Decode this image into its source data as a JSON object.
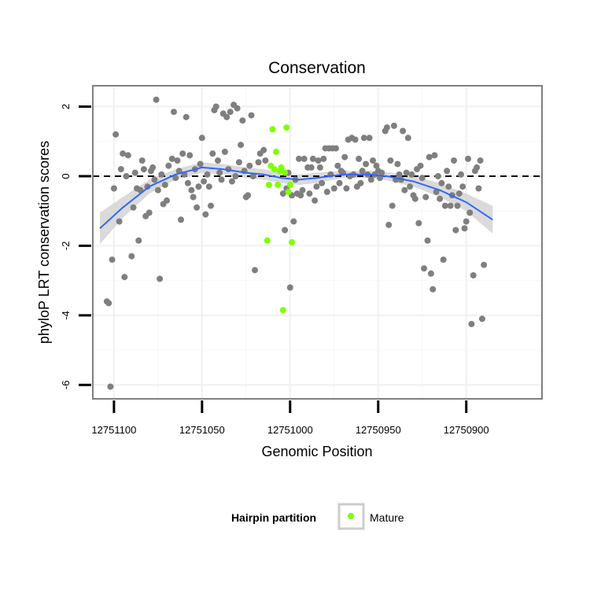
{
  "chart_data": {
    "type": "scatter",
    "title": "Conservation",
    "xlabel": "Genomic Position",
    "ylabel": "phyloP LRT conservation scores",
    "x_reversed": true,
    "xlim": [
      12751112,
      12750857
    ],
    "ylim": [
      -6.4,
      2.6
    ],
    "x_ticks": [
      12751100,
      12751050,
      12751000,
      12750950,
      12750900
    ],
    "y_ticks": [
      -6,
      -4,
      -2,
      0,
      2
    ],
    "reference_line": 0,
    "grid": true,
    "legend": {
      "title": "Hairpin partition",
      "position": "bottom",
      "entries": [
        {
          "label": "Mature",
          "color": "#7fff00"
        }
      ]
    },
    "colors": {
      "background": "#7f7f7f",
      "mature": "#7fff00",
      "smooth": "#3366ff",
      "band": "#d4d4d4"
    },
    "series": [
      {
        "name": "",
        "color": "#7f7f7f",
        "points": [
          [
            12751104,
            -3.6
          ],
          [
            12751103,
            -3.65
          ],
          [
            12751102,
            -6.05
          ],
          [
            12751101,
            -2.4
          ],
          [
            12751100,
            -0.35
          ],
          [
            12751099,
            1.2
          ],
          [
            12751097,
            -1.3
          ],
          [
            12751096,
            0.2
          ],
          [
            12751095,
            0.65
          ],
          [
            12751094,
            -2.9
          ],
          [
            12751093,
            0.0
          ],
          [
            12751092,
            0.6
          ],
          [
            12751090,
            -2.3
          ],
          [
            12751089,
            -0.9
          ],
          [
            12751088,
            0.1
          ],
          [
            12751087,
            -0.35
          ],
          [
            12751086,
            -1.85
          ],
          [
            12751085,
            -0.4
          ],
          [
            12751084,
            0.45
          ],
          [
            12751083,
            0.2
          ],
          [
            12751082,
            -1.15
          ],
          [
            12751081,
            -0.3
          ],
          [
            12751080,
            -1.05
          ],
          [
            12751079,
            0.15
          ],
          [
            12751078,
            0.25
          ],
          [
            12751077,
            -0.1
          ],
          [
            12751076,
            2.2
          ],
          [
            12751075,
            -0.4
          ],
          [
            12751074,
            -2.95
          ],
          [
            12751073,
            0.05
          ],
          [
            12751072,
            -0.8
          ],
          [
            12751071,
            -0.25
          ],
          [
            12751070,
            -0.7
          ],
          [
            12751069,
            0.3
          ],
          [
            12751067,
            0.5
          ],
          [
            12751066,
            1.85
          ],
          [
            12751065,
            -0.05
          ],
          [
            12751064,
            0.45
          ],
          [
            12751063,
            0.15
          ],
          [
            12751062,
            -1.25
          ],
          [
            12751061,
            0.65
          ],
          [
            12751060,
            0.05
          ],
          [
            12751059,
            1.7
          ],
          [
            12751058,
            -0.2
          ],
          [
            12751057,
            0.6
          ],
          [
            12751056,
            -0.4
          ],
          [
            12751055,
            -0.6
          ],
          [
            12751054,
            0.2
          ],
          [
            12751053,
            -0.9
          ],
          [
            12751052,
            -0.3
          ],
          [
            12751051,
            0.35
          ],
          [
            12751050,
            1.1
          ],
          [
            12751049,
            -0.15
          ],
          [
            12751048,
            -1.1
          ],
          [
            12751047,
            0.05
          ],
          [
            12751046,
            -0.3
          ],
          [
            12751045,
            -0.85
          ],
          [
            12751044,
            0.65
          ],
          [
            12751043,
            1.9
          ],
          [
            12751042,
            2.0
          ],
          [
            12751041,
            0.45
          ],
          [
            12751040,
            0.1
          ],
          [
            12751039,
            -0.1
          ],
          [
            12751038,
            1.8
          ],
          [
            12751037,
            0.7
          ],
          [
            12751036,
            1.7
          ],
          [
            12751035,
            0.2
          ],
          [
            12751034,
            1.85
          ],
          [
            12751033,
            -0.15
          ],
          [
            12751032,
            2.05
          ],
          [
            12751031,
            0.0
          ],
          [
            12751030,
            1.95
          ],
          [
            12751029,
            0.4
          ],
          [
            12751028,
            0.9
          ],
          [
            12751027,
            1.6
          ],
          [
            12751026,
            0.15
          ],
          [
            12751025,
            -0.6
          ],
          [
            12751024,
            -0.55
          ],
          [
            12751023,
            0.3
          ],
          [
            12751022,
            1.75
          ],
          [
            12751021,
            0.0
          ],
          [
            12751020,
            -2.7
          ],
          [
            12751018,
            0.4
          ],
          [
            12751017,
            0.65
          ],
          [
            12751015,
            0.75
          ],
          [
            12751014,
            0.45
          ],
          [
            12751004,
            -0.5
          ],
          [
            12751003,
            -1.55
          ],
          [
            12751002,
            -0.35
          ],
          [
            12751001,
            0.1
          ],
          [
            12751000,
            -3.2
          ],
          [
            12750999,
            -0.55
          ],
          [
            12750998,
            -1.3
          ],
          [
            12750997,
            -0.1
          ],
          [
            12750996,
            -0.5
          ],
          [
            12750995,
            0.5
          ],
          [
            12750994,
            -0.55
          ],
          [
            12750993,
            -0.4
          ],
          [
            12750992,
            0.5
          ],
          [
            12750990,
            0.25
          ],
          [
            12750989,
            -0.5
          ],
          [
            12750988,
            0.25
          ],
          [
            12750987,
            0.5
          ],
          [
            12750986,
            -0.7
          ],
          [
            12750985,
            -0.3
          ],
          [
            12750984,
            0.45
          ],
          [
            12750983,
            0.25
          ],
          [
            12750982,
            -0.2
          ],
          [
            12750981,
            0.5
          ],
          [
            12750980,
            0.8
          ],
          [
            12750979,
            -0.45
          ],
          [
            12750978,
            0.8
          ],
          [
            12750977,
            0.05
          ],
          [
            12750976,
            0.8
          ],
          [
            12750975,
            -0.35
          ],
          [
            12750974,
            0.8
          ],
          [
            12750973,
            0.3
          ],
          [
            12750972,
            -0.2
          ],
          [
            12750971,
            0.15
          ],
          [
            12750970,
            0.1
          ],
          [
            12750969,
            0.55
          ],
          [
            12750968,
            -0.35
          ],
          [
            12750967,
            1.05
          ],
          [
            12750966,
            0.0
          ],
          [
            12750965,
            1.1
          ],
          [
            12750964,
            0.05
          ],
          [
            12750963,
            1.05
          ],
          [
            12750962,
            -0.3
          ],
          [
            12750961,
            0.5
          ],
          [
            12750960,
            -0.2
          ],
          [
            12750959,
            0.15
          ],
          [
            12750958,
            1.1
          ],
          [
            12750957,
            0.35
          ],
          [
            12750956,
            0.05
          ],
          [
            12750955,
            1.1
          ],
          [
            12750954,
            -0.1
          ],
          [
            12750953,
            0.45
          ],
          [
            12750952,
            0.05
          ],
          [
            12750951,
            0.3
          ],
          [
            12750950,
            0.15
          ],
          [
            12750949,
            -0.05
          ],
          [
            12750948,
            0.1
          ],
          [
            12750946,
            1.3
          ],
          [
            12750945,
            1.4
          ],
          [
            12750944,
            -1.4
          ],
          [
            12750943,
            0.45
          ],
          [
            12750942,
            -0.85
          ],
          [
            12750941,
            1.45
          ],
          [
            12750940,
            -0.1
          ],
          [
            12750939,
            0.35
          ],
          [
            12750938,
            0.05
          ],
          [
            12750937,
            -0.1
          ],
          [
            12750936,
            1.3
          ],
          [
            12750935,
            -0.4
          ],
          [
            12750934,
            0.1
          ],
          [
            12750933,
            1.1
          ],
          [
            12750932,
            -0.3
          ],
          [
            12750931,
            0.05
          ],
          [
            12750930,
            -0.55
          ],
          [
            12750929,
            -0.65
          ],
          [
            12750928,
            0.2
          ],
          [
            12750927,
            -1.35
          ],
          [
            12750926,
            0.3
          ],
          [
            12750925,
            -0.05
          ],
          [
            12750924,
            -2.65
          ],
          [
            12750923,
            -0.6
          ],
          [
            12750922,
            -1.85
          ],
          [
            12750921,
            0.55
          ],
          [
            12750920,
            -2.8
          ],
          [
            12750919,
            -3.25
          ],
          [
            12750918,
            0.6
          ],
          [
            12750917,
            -0.45
          ],
          [
            12750916,
            0.0
          ],
          [
            12750915,
            -0.65
          ],
          [
            12750914,
            -0.2
          ],
          [
            12750913,
            -2.4
          ],
          [
            12750912,
            -0.85
          ],
          [
            12750911,
            0.15
          ],
          [
            12750910,
            -0.3
          ],
          [
            12750909,
            -0.85
          ],
          [
            12750908,
            -0.55
          ],
          [
            12750907,
            0.45
          ],
          [
            12750906,
            -1.55
          ],
          [
            12750905,
            -0.85
          ],
          [
            12750904,
            -0.5
          ],
          [
            12750903,
            0.05
          ],
          [
            12750902,
            -0.3
          ],
          [
            12750901,
            -1.5
          ],
          [
            12750900,
            -1.3
          ],
          [
            12750899,
            0.5
          ],
          [
            12750898,
            -1.05
          ],
          [
            12750897,
            -4.25
          ],
          [
            12750896,
            -2.85
          ],
          [
            12750895,
            0.15
          ],
          [
            12750894,
            0.25
          ],
          [
            12750893,
            -0.35
          ],
          [
            12750892,
            0.45
          ],
          [
            12750891,
            -4.1
          ],
          [
            12750890,
            -2.55
          ]
        ]
      },
      {
        "name": "Mature",
        "color": "#7fff00",
        "points": [
          [
            12751013,
            -1.85
          ],
          [
            12751012,
            -0.25
          ],
          [
            12751011,
            0.3
          ],
          [
            12751010,
            1.35
          ],
          [
            12751009,
            0.2
          ],
          [
            12751008,
            0.7
          ],
          [
            12751007,
            -0.25
          ],
          [
            12751006,
            0.15
          ],
          [
            12751005,
            0.25
          ],
          [
            12751004,
            -3.85
          ],
          [
            12751003,
            0.1
          ],
          [
            12751002,
            1.4
          ],
          [
            12751001,
            -0.45
          ],
          [
            12751000,
            -0.25
          ],
          [
            12750999,
            -1.9
          ]
        ]
      }
    ],
    "smooth": {
      "color": "#3366ff",
      "x": [
        12751108,
        12751095,
        12751080,
        12751065,
        12751050,
        12751038,
        12751025,
        12751015,
        12751005,
        12750995,
        12750985,
        12750970,
        12750955,
        12750945,
        12750930,
        12750915,
        12750900,
        12750885
      ],
      "y": [
        -1.5,
        -0.9,
        -0.3,
        0.05,
        0.25,
        0.2,
        0.1,
        0.05,
        -0.05,
        -0.1,
        -0.05,
        0.05,
        0.05,
        0.0,
        -0.15,
        -0.4,
        -0.75,
        -1.25
      ],
      "lower": [
        -1.95,
        -1.2,
        -0.5,
        -0.1,
        0.1,
        0.05,
        -0.05,
        -0.1,
        -0.2,
        -0.25,
        -0.2,
        -0.05,
        -0.05,
        -0.12,
        -0.3,
        -0.6,
        -1.0,
        -1.65
      ],
      "upper": [
        -1.05,
        -0.6,
        -0.1,
        0.2,
        0.4,
        0.35,
        0.25,
        0.2,
        0.1,
        0.05,
        0.1,
        0.15,
        0.15,
        0.12,
        0.0,
        -0.2,
        -0.5,
        -0.85
      ]
    }
  }
}
